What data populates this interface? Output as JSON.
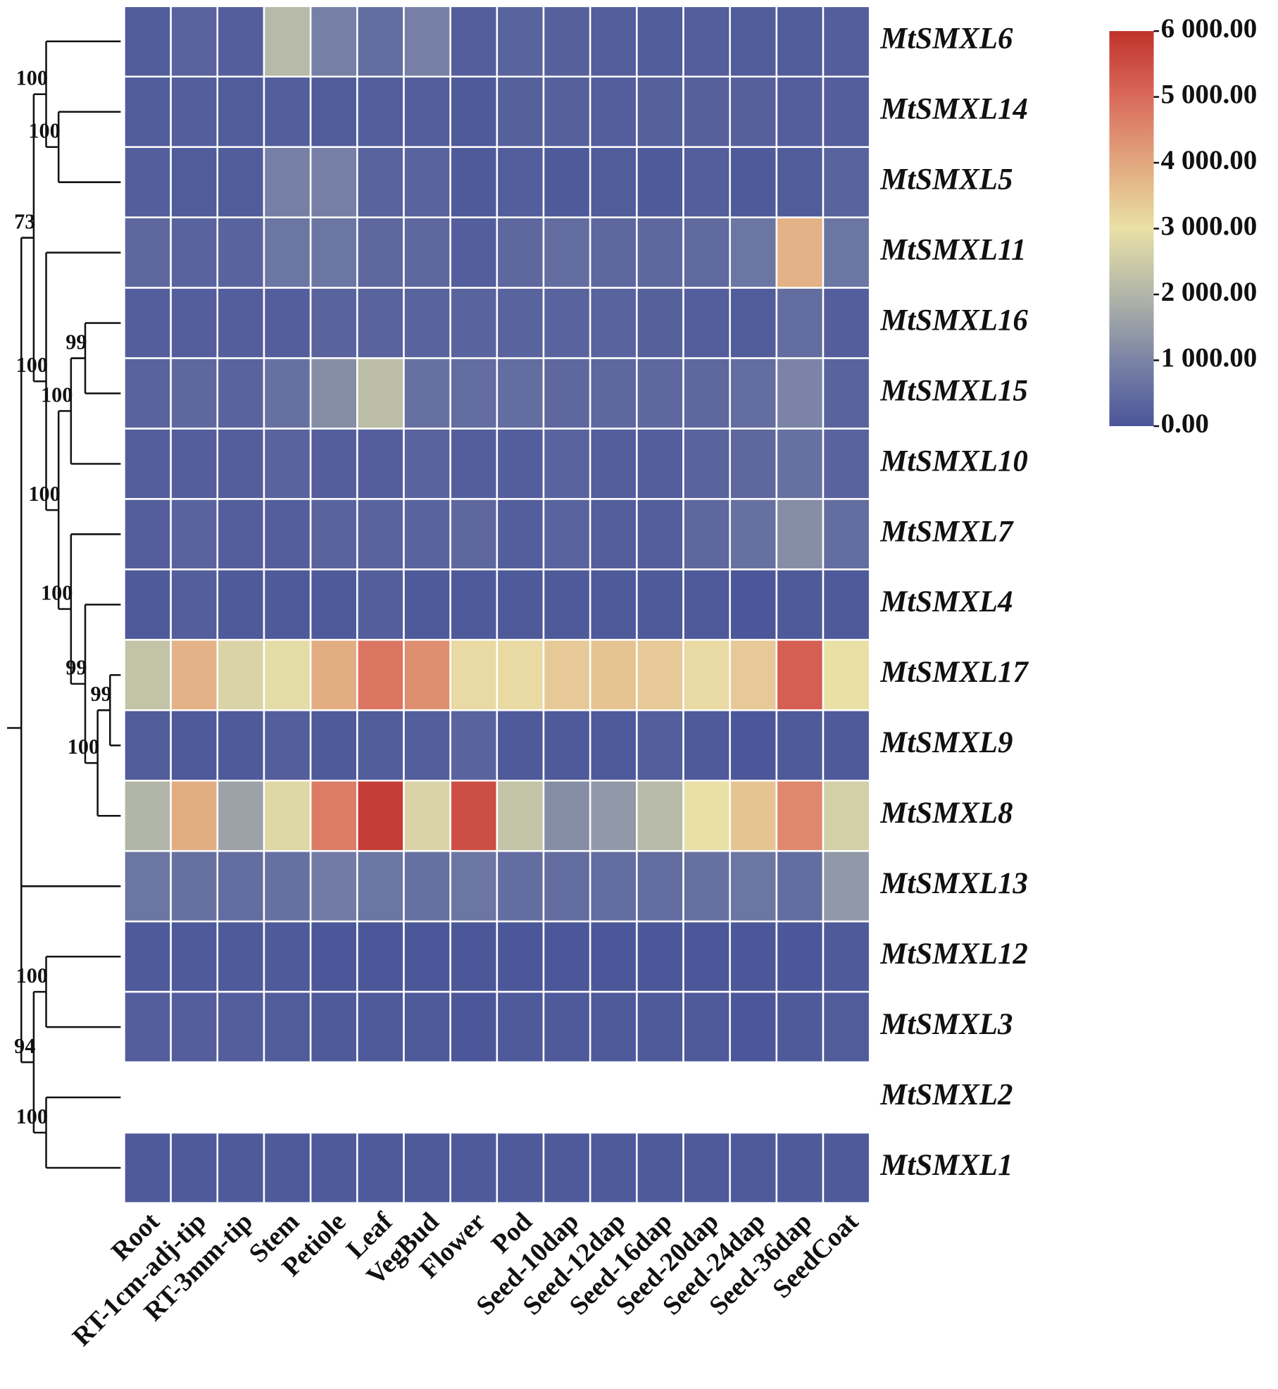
{
  "chart_data": {
    "type": "heatmap",
    "row_labels": [
      "MtSMXL6",
      "MtSMXL14",
      "MtSMXL5",
      "MtSMXL11",
      "MtSMXL16",
      "MtSMXL15",
      "MtSMXL10",
      "MtSMXL7",
      "MtSMXL4",
      "MtSMXL17",
      "MtSMXL9",
      "MtSMXL8",
      "MtSMXL13",
      "MtSMXL12",
      "MtSMXL3",
      "MtSMXL2",
      "MtSMXL1"
    ],
    "col_labels": [
      "Root",
      "RT-1cm-adj-tip",
      "RT-3mm-tip",
      "Stem",
      "Petiole",
      "Leaf",
      "VegBud",
      "Flower",
      "Pod",
      "Seed-10dap",
      "Seed-12dap",
      "Seed-16dap",
      "Seed-20dap",
      "Seed-24dap",
      "Seed-36dap",
      "SeedCoat"
    ],
    "values": [
      [
        150,
        300,
        200,
        2100,
        900,
        500,
        900,
        200,
        300,
        250,
        200,
        150,
        200,
        150,
        150,
        200
      ],
      [
        150,
        200,
        150,
        200,
        150,
        200,
        200,
        100,
        250,
        250,
        200,
        250,
        250,
        250,
        200,
        200
      ],
      [
        200,
        150,
        150,
        900,
        900,
        300,
        300,
        100,
        200,
        100,
        150,
        100,
        200,
        100,
        150,
        300
      ],
      [
        400,
        300,
        300,
        700,
        700,
        400,
        400,
        200,
        400,
        500,
        400,
        400,
        450,
        700,
        3800,
        700
      ],
      [
        200,
        200,
        200,
        200,
        300,
        300,
        300,
        300,
        300,
        300,
        300,
        250,
        200,
        150,
        500,
        200
      ],
      [
        300,
        400,
        300,
        600,
        1200,
        2200,
        600,
        500,
        500,
        400,
        400,
        400,
        400,
        500,
        1000,
        300
      ],
      [
        200,
        200,
        200,
        300,
        200,
        200,
        300,
        200,
        200,
        300,
        200,
        200,
        300,
        400,
        600,
        300
      ],
      [
        200,
        300,
        200,
        200,
        300,
        300,
        300,
        400,
        200,
        300,
        200,
        200,
        400,
        600,
        1200,
        500
      ],
      [
        100,
        200,
        100,
        100,
        100,
        200,
        100,
        100,
        100,
        100,
        100,
        100,
        100,
        50,
        100,
        100
      ],
      [
        2300,
        3800,
        2700,
        2900,
        3900,
        4800,
        4400,
        3100,
        3100,
        3400,
        3500,
        3400,
        3100,
        3400,
        5200,
        3000
      ],
      [
        150,
        100,
        100,
        200,
        100,
        150,
        200,
        300,
        100,
        100,
        100,
        200,
        100,
        50,
        100,
        100
      ],
      [
        2000,
        3900,
        1600,
        2800,
        4700,
        5800,
        2700,
        5500,
        2300,
        1200,
        1400,
        2100,
        3000,
        3500,
        4500,
        2600
      ],
      [
        700,
        600,
        500,
        600,
        800,
        700,
        600,
        700,
        500,
        500,
        500,
        500,
        600,
        700,
        500,
        1400
      ],
      [
        100,
        100,
        100,
        100,
        50,
        50,
        50,
        50,
        50,
        50,
        50,
        50,
        50,
        50,
        50,
        100
      ],
      [
        200,
        200,
        200,
        150,
        100,
        100,
        100,
        50,
        100,
        100,
        100,
        100,
        100,
        50,
        100,
        150
      ],
      [
        null,
        null,
        null,
        null,
        null,
        null,
        null,
        null,
        null,
        null,
        null,
        null,
        null,
        null,
        null,
        null
      ],
      [
        100,
        100,
        100,
        100,
        100,
        100,
        100,
        100,
        100,
        100,
        100,
        100,
        100,
        100,
        100,
        100
      ]
    ],
    "colorscale": [
      "#4a5599",
      "#7b84a6",
      "#b2b6a8",
      "#e9e0a6",
      "#e2a77e",
      "#d96a5c",
      "#c0322c"
    ],
    "clim": [
      0,
      6000
    ],
    "cticks": [
      {
        "value": 0,
        "label": "0.00"
      },
      {
        "value": 1000,
        "label": "1 000.00"
      },
      {
        "value": 2000,
        "label": "2 000.00"
      },
      {
        "value": 3000,
        "label": "3 000.00"
      },
      {
        "value": 4000,
        "label": "4 000.00"
      },
      {
        "value": 5000,
        "label": "5 000.00"
      },
      {
        "value": 6000,
        "label": "6 000.00"
      }
    ],
    "dendrogram_labels": [
      "100",
      "100",
      "99",
      "100",
      "99",
      "100",
      "99",
      "100",
      "100",
      "100",
      "73",
      "100",
      "100",
      "94"
    ]
  }
}
